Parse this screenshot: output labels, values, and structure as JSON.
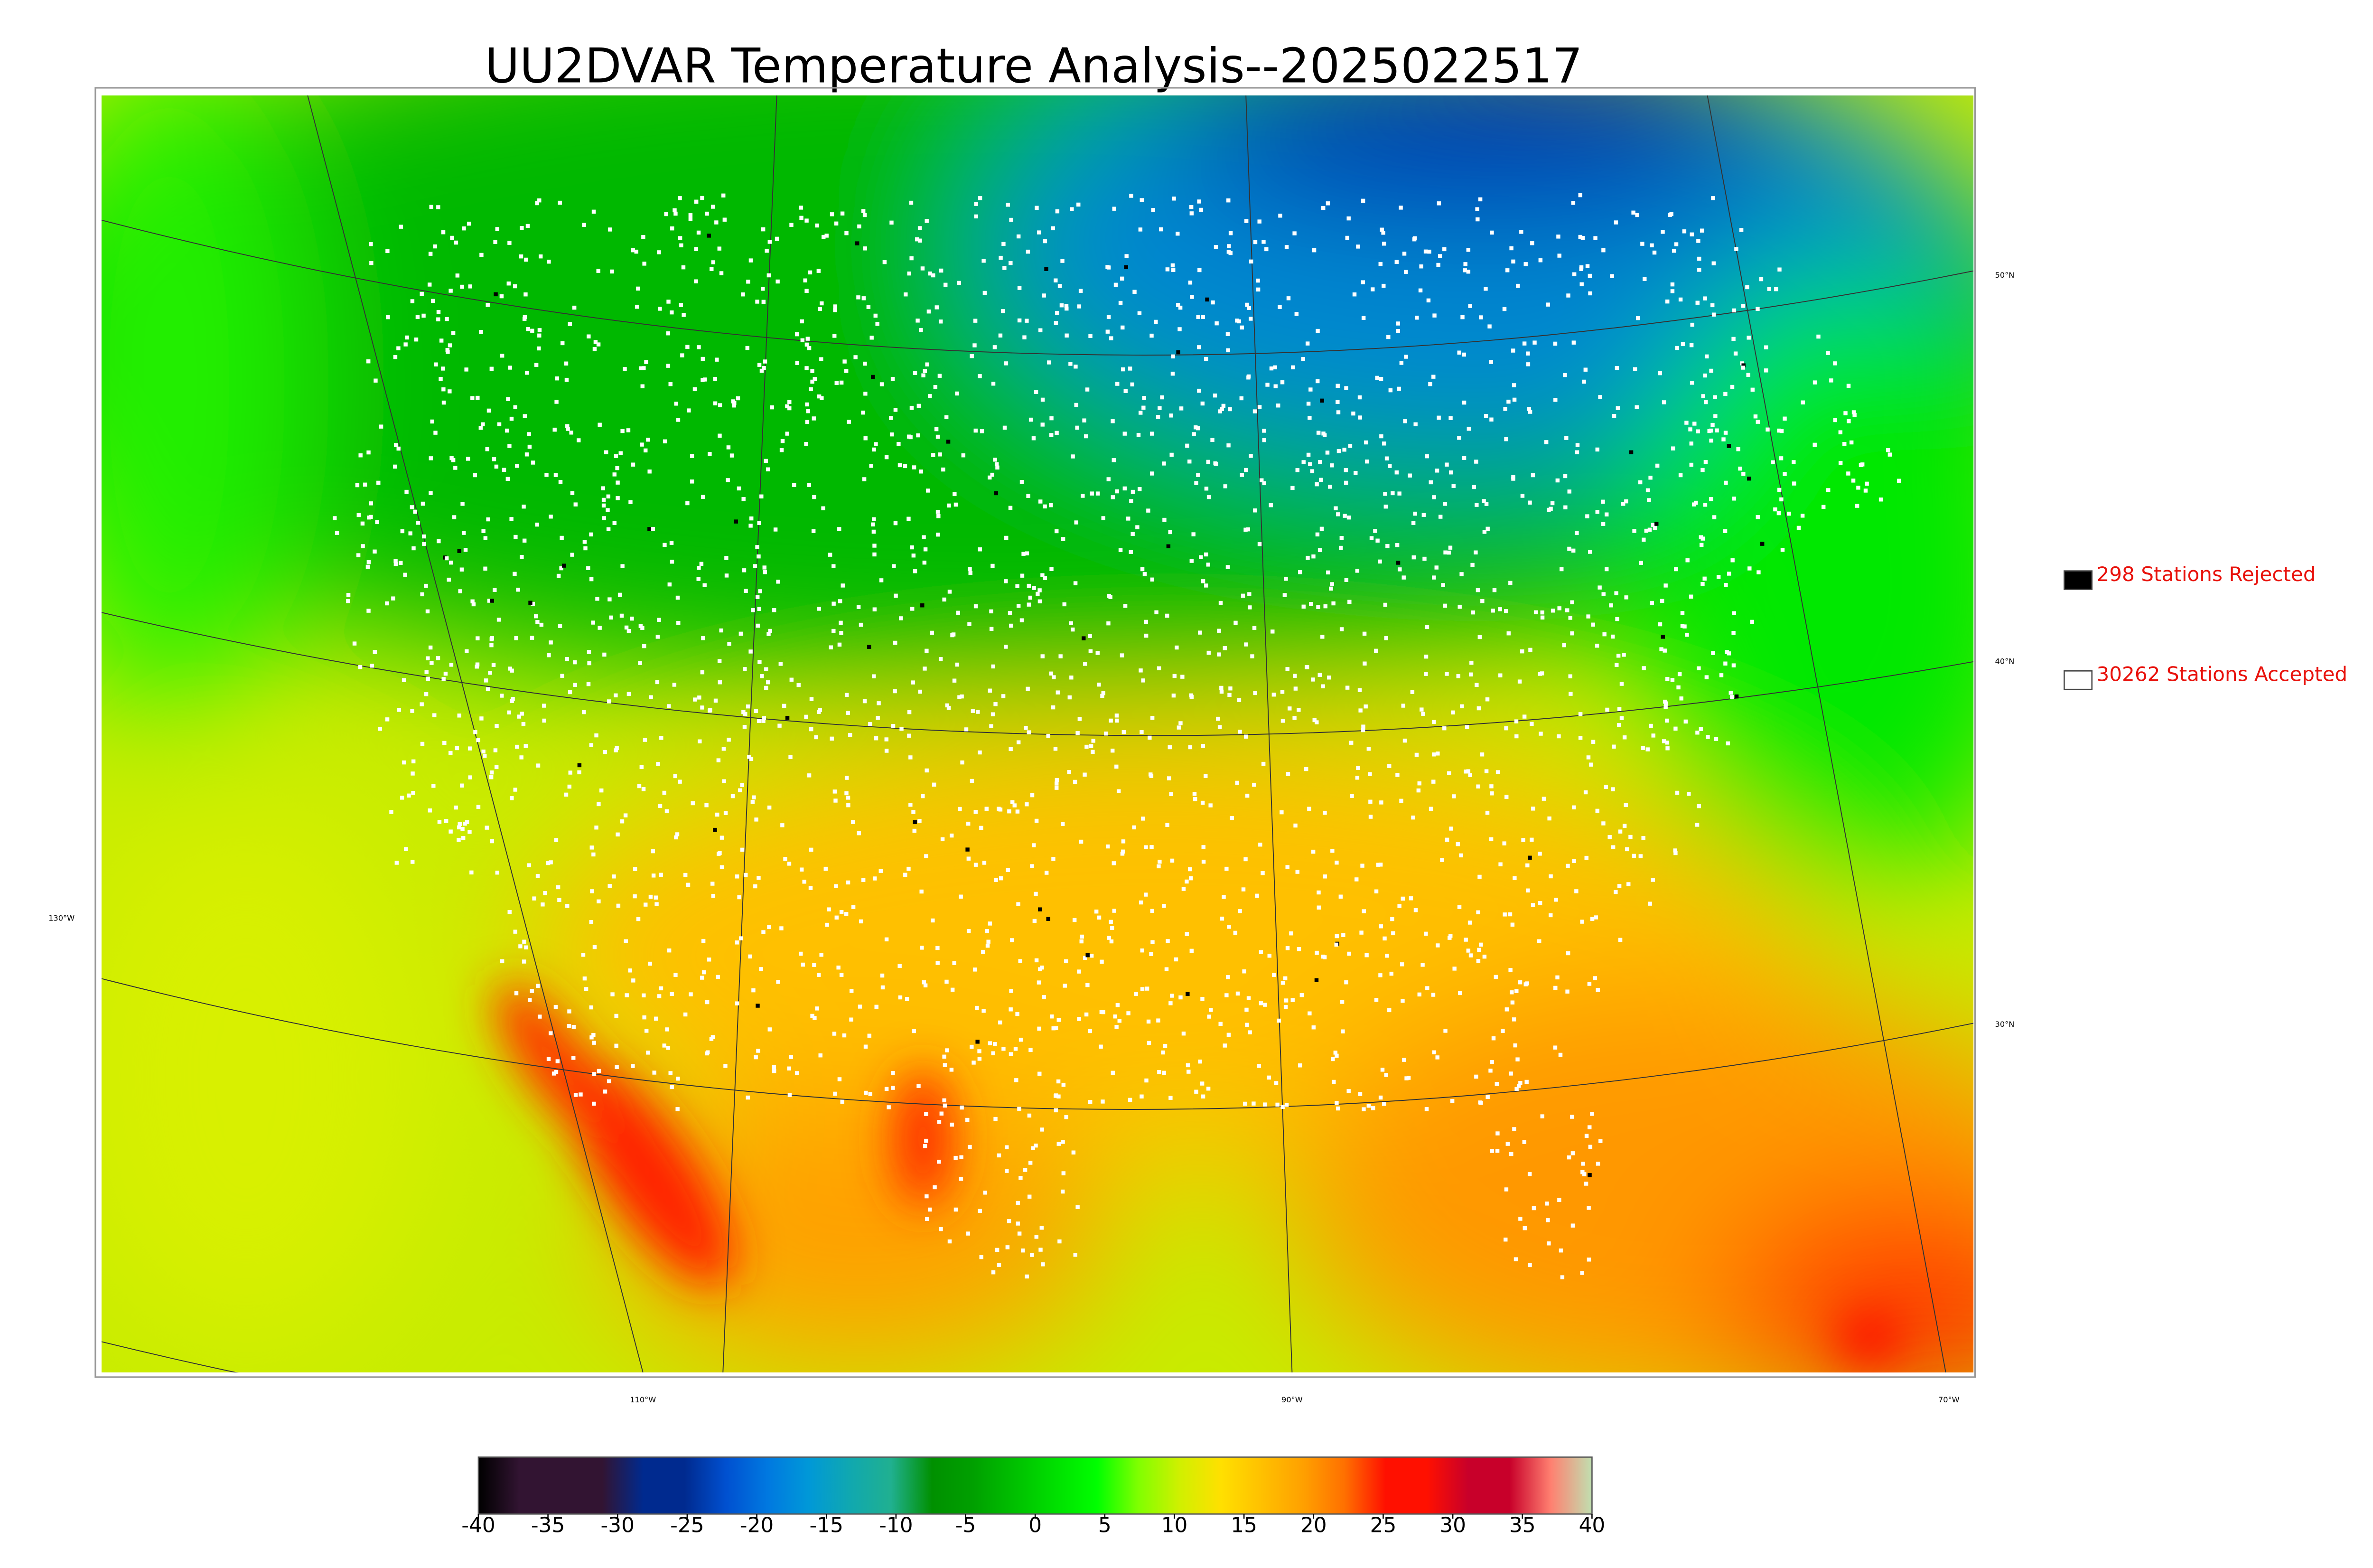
{
  "title": "UU2DVAR Temperature Analysis--2025022517",
  "legend": [
    {
      "label": "298 Stations Rejected",
      "color": "#000000"
    },
    {
      "label": "30262 Stations Accepted",
      "color": "#ffffff"
    }
  ],
  "graticule": {
    "lat_labels": [
      "50°N",
      "40°N",
      "30°N"
    ],
    "lon_labels": [
      "130°W",
      "110°W",
      "90°W",
      "70°W"
    ]
  },
  "colorbar": {
    "lim": [
      -40,
      40
    ],
    "ticks": [
      -40,
      -35,
      -30,
      -25,
      -20,
      -15,
      -10,
      -5,
      0,
      5,
      10,
      15,
      20,
      25,
      30,
      35,
      40
    ],
    "colors": [
      "#000000",
      "#321432",
      "#321432",
      "#321432",
      "#002a8f",
      "#002a8f",
      "#0050d0",
      "#0078e0",
      "#0098d8",
      "#10a8b0",
      "#20b090",
      "#009000",
      "#00a000",
      "#00c000",
      "#00e000",
      "#00ff00",
      "#80ff00",
      "#d0f000",
      "#ffe000",
      "#ffc000",
      "#ffa000",
      "#ff7000",
      "#ff1000",
      "#ff1000",
      "#c8002a",
      "#c8002a",
      "#ff8070",
      "#c0e0b0"
    ]
  }
}
